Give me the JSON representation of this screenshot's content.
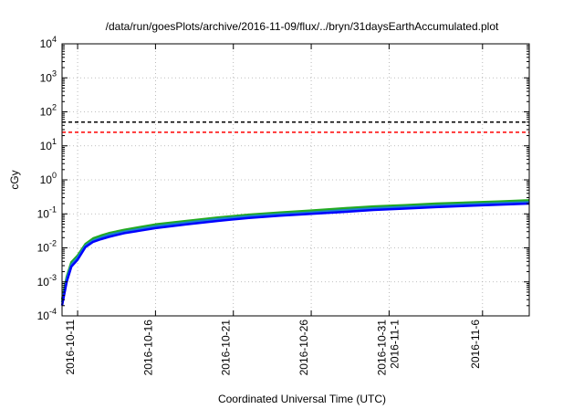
{
  "chart_data": {
    "type": "line",
    "title": "/data/run/goesPlots/archive/2016-11-09/flux/../bryn/31daysEarthAccumulated.plot",
    "xlabel": "Coordinated Universal Time (UTC)",
    "ylabel": "cGy",
    "yscale": "log",
    "ylim": [
      0.0001,
      10000
    ],
    "y_ticks": [
      {
        "value": 0.0001,
        "base": "10",
        "exp": "-4"
      },
      {
        "value": 0.001,
        "base": "10",
        "exp": "-3"
      },
      {
        "value": 0.01,
        "base": "10",
        "exp": "-2"
      },
      {
        "value": 0.1,
        "base": "10",
        "exp": "-1"
      },
      {
        "value": 1,
        "base": "10",
        "exp": "0"
      },
      {
        "value": 10,
        "base": "10",
        "exp": "1"
      },
      {
        "value": 100,
        "base": "10",
        "exp": "2"
      },
      {
        "value": 1000,
        "base": "10",
        "exp": "3"
      },
      {
        "value": 10000,
        "base": "10",
        "exp": "4"
      }
    ],
    "xlim": [
      "2016-10-10",
      "2016-11-09"
    ],
    "x_ticks": [
      {
        "value": "2016-10-11",
        "label": [
          "2016-10-11"
        ]
      },
      {
        "value": "2016-10-16",
        "label": [
          "2016-10-16"
        ]
      },
      {
        "value": "2016-10-21",
        "label": [
          "2016-10-21"
        ]
      },
      {
        "value": "2016-10-26",
        "label": [
          "2016-10-26"
        ]
      },
      {
        "value": "2016-10-31",
        "label": [
          "2016-10-31",
          "2016-11-1"
        ]
      },
      {
        "value": "2016-11-06",
        "label": [
          "2016-11-6"
        ]
      }
    ],
    "grid": true,
    "thresholds": [
      {
        "value": 50,
        "color": "#000000"
      },
      {
        "value": 25,
        "color": "#ff0000"
      }
    ],
    "series": [
      {
        "color": "#22aa22",
        "x": [
          "2016-10-10",
          "2016-10-10.3",
          "2016-10-10.6",
          "2016-10-11",
          "2016-10-11.5",
          "2016-10-12",
          "2016-10-12.5",
          "2016-10-13",
          "2016-10-14",
          "2016-10-15",
          "2016-10-16",
          "2016-10-18",
          "2016-10-20",
          "2016-10-22",
          "2016-10-24",
          "2016-10-26",
          "2016-10-28",
          "2016-10-30",
          "2016-11-01",
          "2016-11-03",
          "2016-11-05",
          "2016-11-07",
          "2016-11-09"
        ],
        "y": [
          0.0003,
          0.0014,
          0.0038,
          0.006,
          0.013,
          0.019,
          0.023,
          0.027,
          0.034,
          0.041,
          0.049,
          0.062,
          0.078,
          0.095,
          0.11,
          0.125,
          0.145,
          0.165,
          0.18,
          0.2,
          0.215,
          0.23,
          0.25
        ]
      },
      {
        "color": "#1a7fd0",
        "x": [
          "2016-10-10",
          "2016-10-10.3",
          "2016-10-10.6",
          "2016-10-11",
          "2016-10-11.5",
          "2016-10-12",
          "2016-10-12.5",
          "2016-10-13",
          "2016-10-14",
          "2016-10-15",
          "2016-10-16",
          "2016-10-18",
          "2016-10-20",
          "2016-10-22",
          "2016-10-24",
          "2016-10-26",
          "2016-10-28",
          "2016-10-30",
          "2016-11-01",
          "2016-11-03",
          "2016-11-05",
          "2016-11-07",
          "2016-11-09"
        ],
        "y": [
          0.00025,
          0.0012,
          0.0032,
          0.0052,
          0.0115,
          0.0165,
          0.02,
          0.024,
          0.03,
          0.036,
          0.043,
          0.055,
          0.07,
          0.085,
          0.098,
          0.11,
          0.127,
          0.145,
          0.16,
          0.175,
          0.19,
          0.205,
          0.22
        ]
      },
      {
        "color": "#0000ff",
        "x": [
          "2016-10-10",
          "2016-10-10.3",
          "2016-10-10.6",
          "2016-10-11",
          "2016-10-11.5",
          "2016-10-12",
          "2016-10-12.5",
          "2016-10-13",
          "2016-10-14",
          "2016-10-15",
          "2016-10-16",
          "2016-10-18",
          "2016-10-20",
          "2016-10-22",
          "2016-10-24",
          "2016-10-26",
          "2016-10-28",
          "2016-10-30",
          "2016-11-01",
          "2016-11-03",
          "2016-11-05",
          "2016-11-07",
          "2016-11-09"
        ],
        "y": [
          0.0002,
          0.001,
          0.0028,
          0.0045,
          0.0105,
          0.015,
          0.018,
          0.021,
          0.027,
          0.032,
          0.038,
          0.049,
          0.062,
          0.076,
          0.088,
          0.1,
          0.113,
          0.13,
          0.143,
          0.158,
          0.172,
          0.186,
          0.2
        ]
      }
    ]
  }
}
